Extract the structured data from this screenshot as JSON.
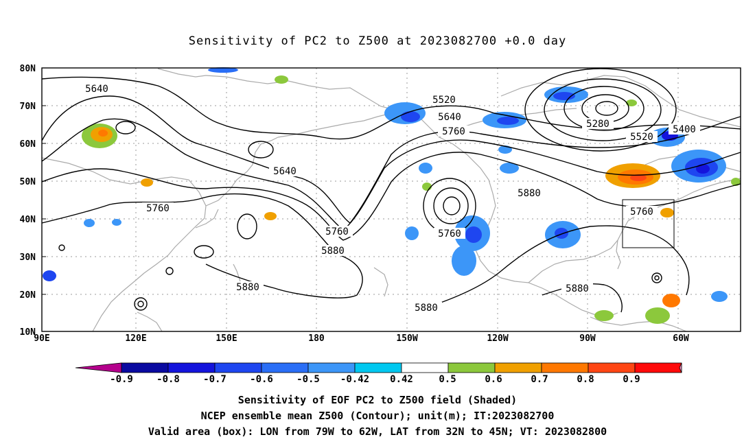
{
  "title": "Sensitivity of PC2 to Z500 at 2023082700 +0.0 day",
  "lat_labels": [
    "80N",
    "70N",
    "60N",
    "50N",
    "40N",
    "30N",
    "20N",
    "10N"
  ],
  "lon_labels": [
    "90E",
    "120E",
    "150E",
    "180",
    "150W",
    "120W",
    "90W",
    "60W"
  ],
  "contour_labels": [
    "5640",
    "5640",
    "5760",
    "5520",
    "5640",
    "5760",
    "5760",
    "5760",
    "5880",
    "5880",
    "5880",
    "5880",
    "5880",
    "5280",
    "5520",
    "5400",
    "5760"
  ],
  "colorbar": {
    "labels": [
      "-0.9",
      "-0.8",
      "-0.7",
      "-0.6",
      "-0.5",
      "-0.42",
      "0.42",
      "0.5",
      "0.6",
      "0.7",
      "0.8",
      "0.9"
    ],
    "colors": [
      "#b4008c",
      "#0a0aa0",
      "#1414dc",
      "#1e46f0",
      "#2a6ef6",
      "#3c96f8",
      "#00c8f0",
      "#ffffff",
      "#8cc83c",
      "#f0a000",
      "#ff7800",
      "#ff4614",
      "#ff0a0a",
      "#f496c8"
    ]
  },
  "captions": [
    "Sensitivity of EOF PC2 to Z500 field (Shaded)",
    "NCEP ensemble mean Z500 (Contour); unit(m); IT:2023082700",
    "Valid area (box): LON from 79W to 62W, LAT from 32N to 45N; VT: 2023082800"
  ]
}
